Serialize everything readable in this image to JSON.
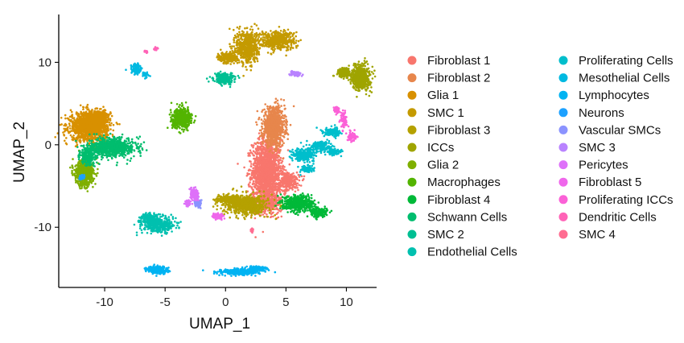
{
  "chart_data": {
    "type": "scatter",
    "title": "",
    "xlabel": "UMAP_1",
    "ylabel": "UMAP_2",
    "xlim": [
      -13.8,
      12.5
    ],
    "ylim": [
      -17.3,
      15.8
    ],
    "xticks": [
      -10,
      -5,
      0,
      5,
      10
    ],
    "yticks": [
      -10,
      0,
      10
    ],
    "grid": false,
    "legend_position": "right",
    "series": [
      {
        "name": "Fibroblast 1",
        "color": "#F8766D",
        "clusters": [
          [
            3.4,
            -3.2,
            1.3,
            4.2,
            1600
          ],
          [
            3.3,
            -7.0,
            1.6,
            1.6,
            300
          ],
          [
            5.2,
            -4.5,
            1.0,
            1.3,
            250
          ]
        ]
      },
      {
        "name": "Fibroblast 2",
        "color": "#E7864C",
        "clusters": [
          [
            4.0,
            2.2,
            1.0,
            2.5,
            900
          ]
        ]
      },
      {
        "name": "Glia 1",
        "color": "#D89000",
        "clusters": [
          [
            -11.3,
            2.2,
            1.7,
            1.9,
            1300
          ],
          [
            -10.4,
            3.4,
            0.9,
            0.8,
            300
          ]
        ]
      },
      {
        "name": "SMC 1",
        "color": "#C49A00",
        "clusters": [
          [
            1.8,
            11.9,
            1.0,
            2.2,
            600
          ],
          [
            4.3,
            12.7,
            1.6,
            1.2,
            500
          ],
          [
            0.2,
            10.6,
            0.9,
            0.8,
            200
          ]
        ]
      },
      {
        "name": "Fibroblast 3",
        "color": "#B5A100",
        "clusters": [
          [
            1.7,
            -7.3,
            2.0,
            1.3,
            700
          ],
          [
            0.2,
            -6.6,
            1.2,
            0.5,
            200
          ]
        ]
      },
      {
        "name": "ICCs",
        "color": "#9FA400",
        "clusters": [
          [
            11.2,
            8.2,
            0.8,
            1.6,
            650
          ],
          [
            9.8,
            8.8,
            0.6,
            0.6,
            150
          ]
        ]
      },
      {
        "name": "Glia 2",
        "color": "#7FAF00",
        "clusters": [
          [
            -11.7,
            -3.5,
            0.8,
            1.6,
            700
          ]
        ]
      },
      {
        "name": "Macrophages",
        "color": "#53B400",
        "clusters": [
          [
            -3.6,
            3.2,
            0.9,
            1.3,
            500
          ]
        ]
      },
      {
        "name": "Fibroblast 4",
        "color": "#00B938",
        "clusters": [
          [
            6.0,
            -7.1,
            1.3,
            1.0,
            600
          ],
          [
            7.7,
            -8.2,
            0.8,
            0.6,
            200
          ]
        ]
      },
      {
        "name": "Schwann Cells",
        "color": "#00BD6E",
        "clusters": [
          [
            -9.4,
            -0.3,
            2.1,
            1.2,
            800
          ],
          [
            -11.4,
            -1.4,
            0.7,
            1.2,
            200
          ]
        ]
      },
      {
        "name": "SMC 2",
        "color": "#00BF93",
        "clusters": [
          [
            -0.1,
            8.0,
            0.9,
            0.7,
            280
          ]
        ]
      },
      {
        "name": "Endothelial Cells",
        "color": "#00C0AF",
        "clusters": [
          [
            -5.6,
            -9.7,
            1.5,
            1.0,
            400
          ],
          [
            -6.4,
            -8.8,
            0.7,
            0.6,
            120
          ]
        ]
      },
      {
        "name": "Proliferating Cells",
        "color": "#00BECC",
        "clusters": [
          [
            6.5,
            -1.2,
            1.0,
            0.8,
            250
          ],
          [
            7.9,
            -0.2,
            1.0,
            0.7,
            200
          ],
          [
            8.8,
            1.5,
            0.8,
            0.6,
            150
          ],
          [
            9.0,
            -0.9,
            0.6,
            0.4,
            100
          ],
          [
            6.7,
            -3.0,
            0.6,
            0.5,
            100
          ]
        ]
      },
      {
        "name": "Mesothelial Cells",
        "color": "#00B9E1",
        "clusters": [
          [
            -7.4,
            9.2,
            0.5,
            0.7,
            120
          ],
          [
            -6.6,
            8.5,
            0.3,
            0.3,
            40
          ]
        ]
      },
      {
        "name": "Lymphocytes",
        "color": "#00B3F2",
        "clusters": [
          [
            -5.6,
            -15.2,
            0.9,
            0.5,
            250
          ],
          [
            1.2,
            -15.4,
            1.9,
            0.4,
            350
          ],
          [
            2.6,
            -15.0,
            0.9,
            0.3,
            120
          ]
        ]
      },
      {
        "name": "Neurons",
        "color": "#1DA1FF",
        "clusters": [
          [
            -11.9,
            -3.9,
            0.3,
            0.4,
            40
          ]
        ]
      },
      {
        "name": "Vascular SMCs",
        "color": "#8B93FF",
        "clusters": [
          [
            -2.3,
            -7.0,
            0.4,
            0.5,
            80
          ]
        ]
      },
      {
        "name": "SMC 3",
        "color": "#B983FF",
        "clusters": [
          [
            5.8,
            8.6,
            0.5,
            0.3,
            80
          ]
        ]
      },
      {
        "name": "Pericytes",
        "color": "#DE71F9",
        "clusters": [
          [
            -2.6,
            -6.0,
            0.35,
            0.8,
            120
          ],
          [
            -3.1,
            -7.1,
            0.3,
            0.4,
            50
          ]
        ]
      },
      {
        "name": "Fibroblast 5",
        "color": "#EF67EB",
        "clusters": [
          [
            -0.6,
            -8.7,
            0.5,
            0.4,
            80
          ]
        ]
      },
      {
        "name": "Proliferating ICCs",
        "color": "#FB61D7",
        "clusters": [
          [
            9.8,
            3.0,
            0.3,
            1.2,
            80
          ],
          [
            10.5,
            1.0,
            0.4,
            0.6,
            60
          ],
          [
            9.2,
            4.3,
            0.3,
            0.5,
            40
          ]
        ]
      },
      {
        "name": "Dendritic Cells",
        "color": "#FF63B7",
        "clusters": [
          [
            -5.8,
            11.7,
            0.2,
            0.25,
            25
          ],
          [
            -6.6,
            11.3,
            0.15,
            0.2,
            10
          ]
        ]
      },
      {
        "name": "SMC 4",
        "color": "#FF6C91",
        "clusters": [
          [
            2.2,
            -10.4,
            0.2,
            0.25,
            30
          ]
        ]
      }
    ]
  }
}
